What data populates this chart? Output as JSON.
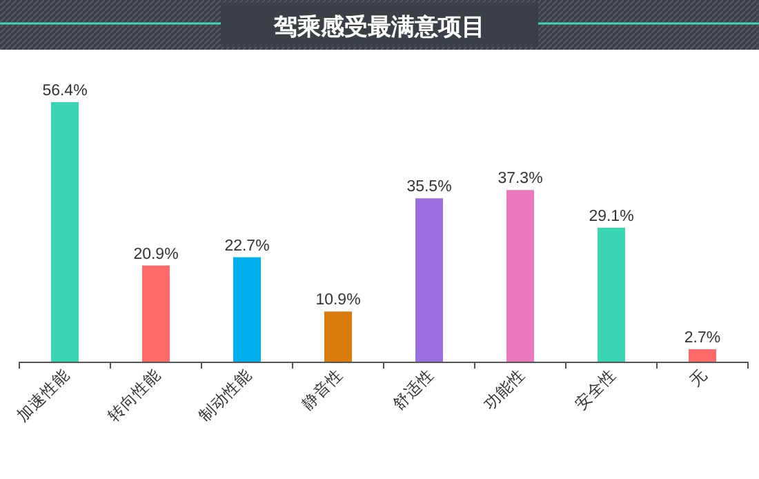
{
  "chart_data": {
    "type": "bar",
    "title": "驾乘感受最满意项目",
    "categories": [
      "加速性能",
      "转向性能",
      "制动性能",
      "静音性",
      "舒适性",
      "功能性",
      "安全性",
      "无"
    ],
    "values": [
      56.4,
      20.9,
      22.7,
      10.9,
      35.5,
      37.3,
      29.1,
      2.7
    ],
    "colors": [
      "#3ad6b4",
      "#ff6b6b",
      "#00b0ec",
      "#d97a0c",
      "#9c6fe0",
      "#ec78be",
      "#3ad6b4",
      "#ff6b6b"
    ],
    "value_labels": [
      "56.4%",
      "20.9%",
      "22.7%",
      "10.9%",
      "35.5%",
      "37.3%",
      "29.1%",
      "2.7%"
    ]
  }
}
